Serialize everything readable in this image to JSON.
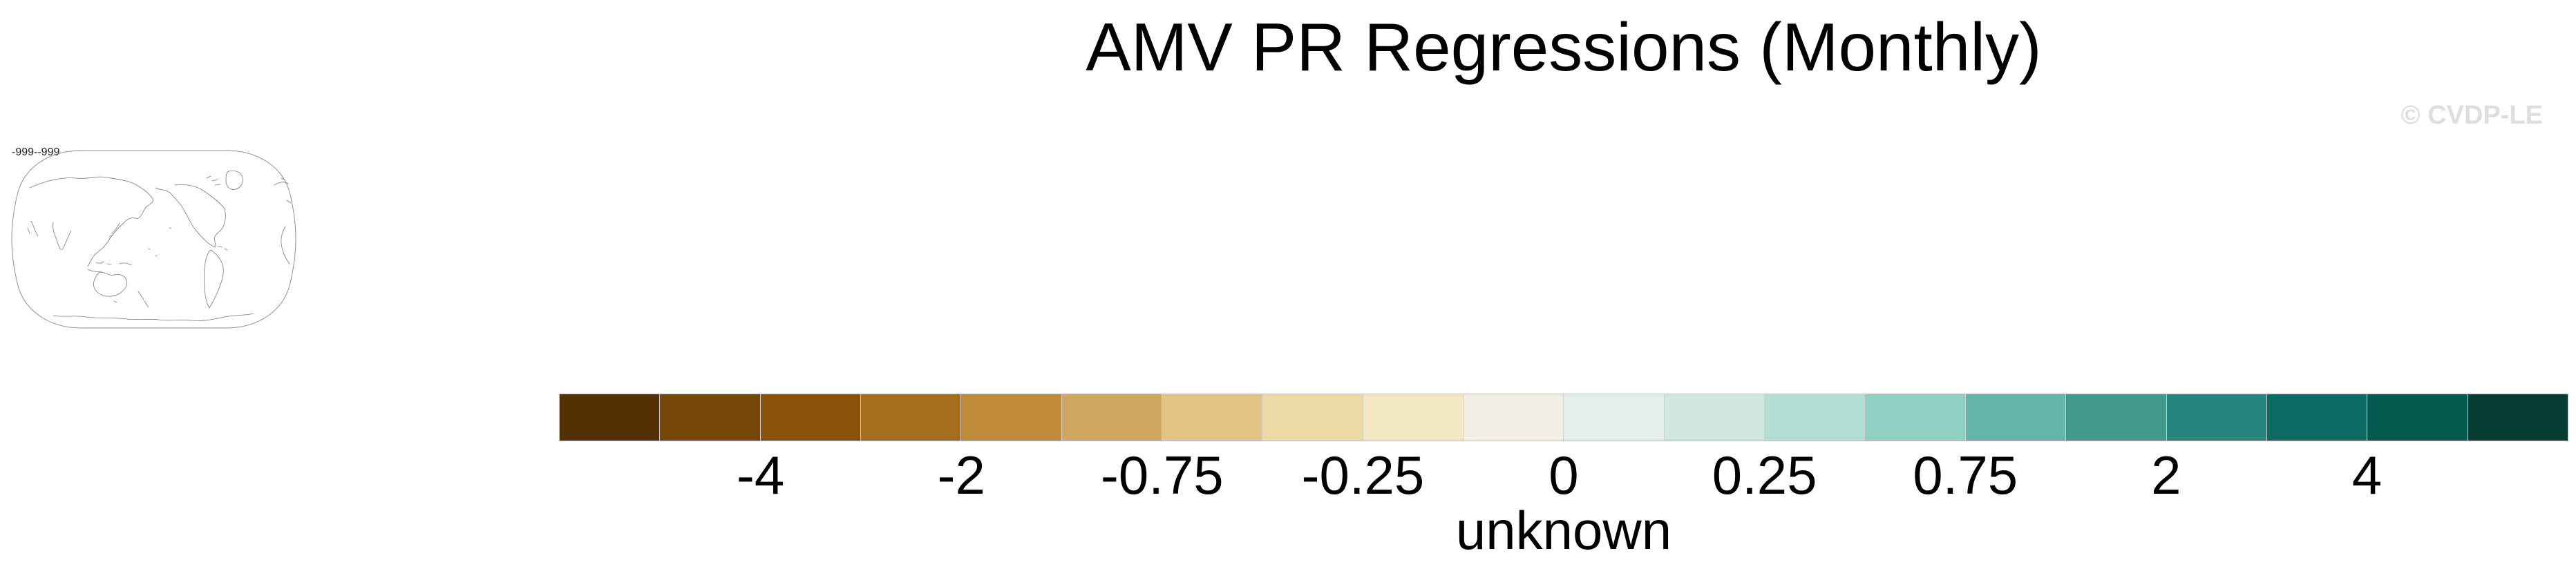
{
  "figure": {
    "title": "AMV PR Regressions (Monthly)",
    "watermark": "© CVDP-LE"
  },
  "map_inset": {
    "icon": "world-coastline-map-icon",
    "label": "-999--999"
  },
  "chart_data": {
    "type": "heatmap",
    "subtype": "regression-map-figure-with-labelbar",
    "title": "AMV PR Regressions (Monthly)",
    "watermark": "© CVDP-LE",
    "map_inset_label": "-999--999",
    "colorbar": {
      "orientation": "horizontal",
      "label": "unknown",
      "n_segments": 20,
      "tick_labels": [
        "-4",
        "-2",
        "-0.75",
        "-0.25",
        "0",
        "0.25",
        "0.75",
        "2",
        "4"
      ],
      "ticks": [
        {
          "label": "-4",
          "boundary_index": 2
        },
        {
          "label": "-2",
          "boundary_index": 4
        },
        {
          "label": "-0.75",
          "boundary_index": 6
        },
        {
          "label": "-0.25",
          "boundary_index": 8
        },
        {
          "label": "0",
          "boundary_index": 10
        },
        {
          "label": "0.25",
          "boundary_index": 12
        },
        {
          "label": "0.75",
          "boundary_index": 14
        },
        {
          "label": "2",
          "boundary_index": 16
        },
        {
          "label": "4",
          "boundary_index": 18
        }
      ],
      "segment_colors": [
        "#543005",
        "#744708",
        "#8c510a",
        "#a76d1e",
        "#c08a3b",
        "#d1a75f",
        "#e2c584",
        "#ecd9a4",
        "#f3e8c3",
        "#f2efe6",
        "#e4efe9",
        "#d0e8e1",
        "#b4ddd3",
        "#8ed0c2",
        "#62b5a8",
        "#41998e",
        "#26867d",
        "#0c6b62",
        "#04594f",
        "#053d32"
      ],
      "separator_color": "#cfcfcf"
    }
  }
}
